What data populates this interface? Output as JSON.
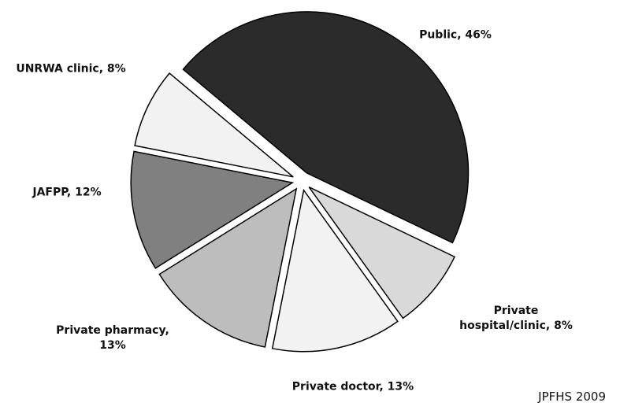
{
  "chart_data": {
    "type": "pie",
    "categories": [
      "Public",
      "Private hospital/clinic",
      "Private doctor",
      "Private pharmacy",
      "JAFPP",
      "UNRWA clinic"
    ],
    "values": [
      46,
      8,
      13,
      13,
      12,
      8
    ],
    "value_labels": [
      "Public, 46%",
      "Private hospital/clinic, 8%",
      "Private doctor, 13%",
      "Private pharmacy, 13%",
      "JAFPP, 12%",
      "UNRWA clinic, 8%"
    ],
    "colors": [
      "#2b2b2b",
      "#d9d9d9",
      "#f2f2f2",
      "#bdbdbd",
      "#808080",
      "#f2f2f2"
    ],
    "source": "JPFHS 2009"
  }
}
